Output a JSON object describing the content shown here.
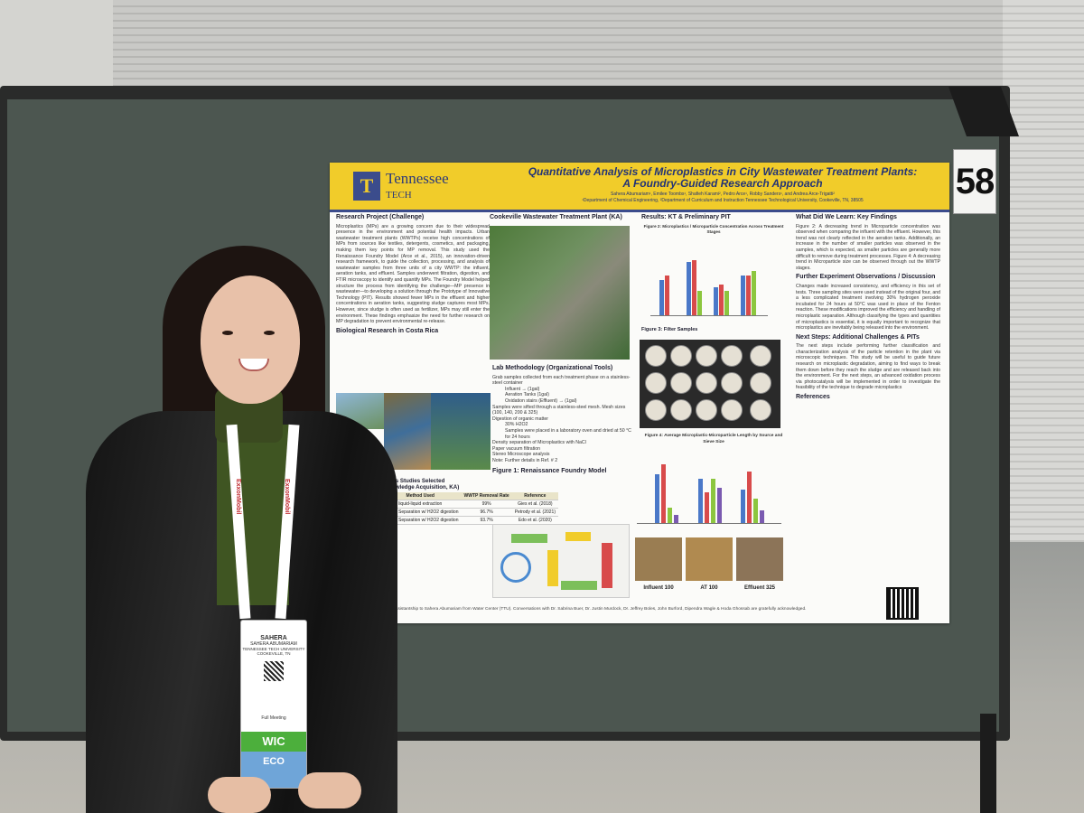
{
  "scene": {
    "booth_number": "58"
  },
  "poster": {
    "logo_letter": "T",
    "logo_text_line1": "Tennessee",
    "logo_text_line2": "TECH",
    "title_line1": "Quantitative Analysis of Microplastics in City Wastewater Treatment Plants:",
    "title_line2": "A Foundry-Guided Research Approach",
    "authors": "Sahera Abumariam¹, Emilee Toombs¹, Shafieh Karami², Pedro Arce¹, Robby Sanders¹, and Andrea Arce-Trigatti²",
    "affiliations": "¹Department of Chemical Engineering, ²Department of Curriculum and Instruction Tennessee Technological University, Cookeville, TN, 38505",
    "sections": {
      "research_project": "Research Project (Challenge)",
      "research_project_body": "Microplastics (MPs) are a growing concern due to their widespread presence in the environment and potential health impacts. Urban wastewater treatment plants (WWTPs) receive high concentrations of MPs from sources like textiles, detergents, cosmetics, and packaging, making them key points for MP removal. This study used the Renaissance Foundry Model (Arce et al., 2015), an innovation-driven research framework, to guide the collection, processing, and analysis of wastewater samples from three units of a city WWTP: the influent, aeration tanks, and effluent. Samples underwent filtration, digestion, and FTIR microscopy to identify and quantify MPs. The Foundry Model helped structure the process from identifying the challenge—MP presence in wastewater—to developing a solution through the Prototype of Innovative Technology (PIT). Results showed fewer MPs in the effluent and higher concentrations in aeration tanks, suggesting sludge captures most MPs. However, since sludge is often used as fertilizer, MPs may still enter the environment. These findings emphasize the need for further research on MP degradation to prevent environmental re-release.",
      "bio_research": "Biological Research in Costa Rica",
      "previous_studies": "Previous Studies Selected",
      "previous_studies_sub": "es (Knowledge Acquisition, KA)",
      "cookeville": "Cookeville Wastewater Treatment Plant (KA)",
      "lab_methodology": "Lab Methodology (Organizational Tools)",
      "lab_items": [
        "Grab samples collected from each treatment phase on a stainless-steel container",
        "Influent → (1gal)",
        "Aeration Tanks (1gal)",
        "Oxidation stairs (Effluent) → (1gal)",
        "Samples were sifted through a stainless-steel mesh. Mesh sizes (100, 140, 200 & 325)",
        "Digestion of organic matter",
        "30% H2O2",
        "Samples were placed in a laboratory oven and dried at 50 °C for 24 hours",
        "Density separation of Microplastics with NaCl",
        "Paper vacuum filtration",
        "Stereo Microscope analysis",
        "Note: Further details in Ref. # 2"
      ],
      "figure1": "Figure 1: Renaissance Foundry Model",
      "results": "Results: KT & Preliminary PIT",
      "figure2": "Figure 2: Microplastics / Microparticle Concentration Across Treatment Stages",
      "figure3": "Figure 3: Filter Samples",
      "figure4": "Figure 4: Average Microplastic-Microparticle Length by Source and Sieve Size",
      "micro_labels": [
        "Influent 100",
        "AT 100",
        "Effluent 325"
      ],
      "learn": "What Did We Learn: Key Findings",
      "learn_body": "Figure 2: A decreasing trend in Microparticle concentration was observed when comparing the influent with the effluent. However, this trend was not clearly reflected in the aeration tanks. Additionally, an increase in the number of smaller particles was observed in the samples, which is expected, as smaller particles are generally more difficult to remove during treatment processes. Figure 4: A decreasing trend in Microparticle size can be observed through out the WWTP stages.",
      "further": "Further Experiment Observations / Discussion",
      "further_body": "Changes made increased consistency, and efficiency in this set of tests. Three sampling sites were used instead of the original four, and a less complicated treatment involving 30% hydrogen peroxide incubated for 24 hours at 50°C was used in place of the Fenton reaction. These modifications improved the efficiency and handling of microplastic separation. Although classifying the types and quantities of microplastics is essential, it is equally important to recognize that microplastics are inevitably being released into the environment.",
      "next_steps": "Next Steps: Additional Challenges & PITs",
      "next_steps_body": "The next steps include performing further classification and characterization analysis of the particle retention in the plant via microscopic techniques. This study will be useful to guide future research on microplastic degradation, aiming to find ways to break them down before they reach the sludge and are released back into the environment. For the next steps, an advanced oxidation process via photocatalysis will be implemented in order to investigate the feasibility of the technique to degrade microplastics",
      "references": "References",
      "footer": "...ch assistantship to Sahera Abumariam from Water Center (TTU). Conversations with Dr. Sabrina Buer, Dr. Justin Murdock, Dr. Jeffrey Boles, John Burford, Dipendra Wagle & Hoda Ghossab are gratefully acknowledged."
    },
    "table": {
      "headers": [
        "Method Used",
        "WWTP Removal Rate",
        "Reference"
      ],
      "rows": [
        [
          "liquid-liquid extraction",
          "99%",
          "Gies et al. (2018)"
        ],
        [
          "Density Separation w/ H2O2 digestion",
          "96.7%",
          "Petrody et al. (2021)"
        ],
        [
          "Density Separation w/ H2O2 digestion",
          "93.7%",
          "Edo et al. (2020)"
        ]
      ]
    },
    "colors": {
      "header_yellow": "#f1cc2a",
      "header_blue": "#3b4c8c"
    }
  },
  "badge": {
    "first_name": "SAHERA",
    "full_name": "SAHERA ABUMARIAM",
    "org": "TENNESSEE TECH UNIVERSITY",
    "city": "COOKEVILLE, TN",
    "type": "Full Meeting",
    "tag": "WIC",
    "tag2": "ECO"
  },
  "lanyard_text": "ExxonMobil"
}
